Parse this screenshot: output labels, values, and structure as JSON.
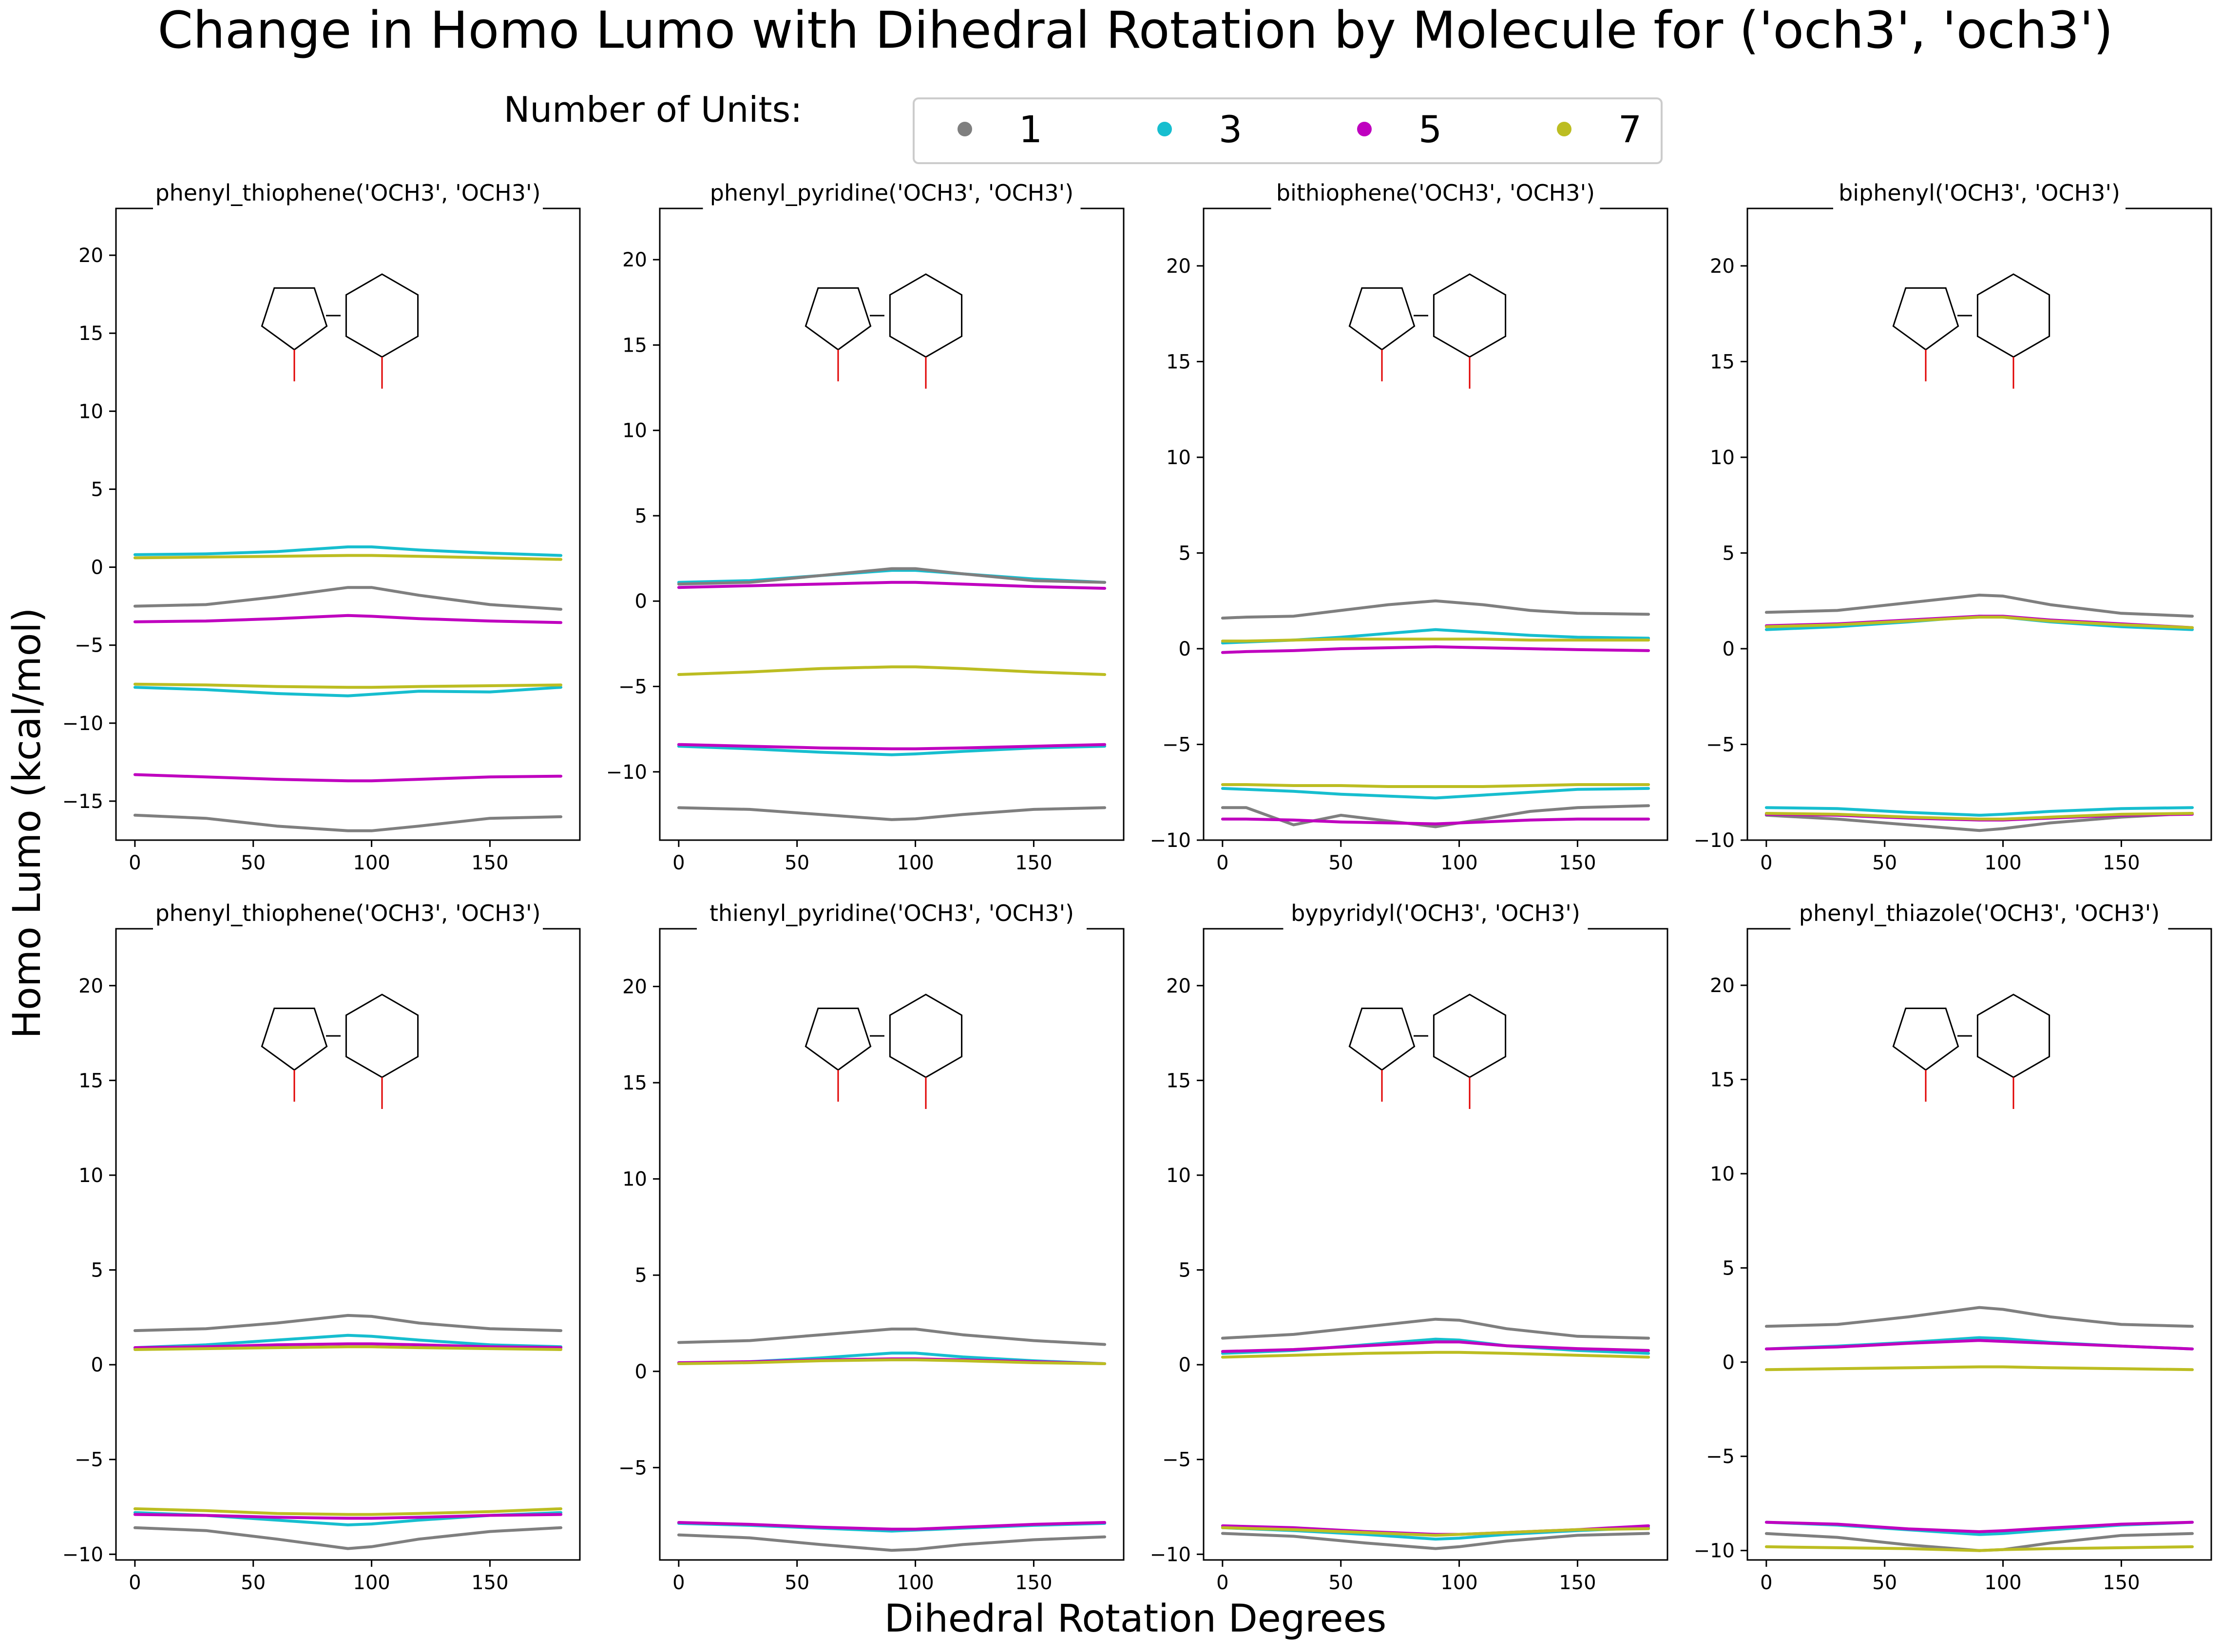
{
  "figure": {
    "title": "Change in Homo Lumo with Dihedral Rotation by Molecule for ('och3', 'och3')",
    "ylabel": "Homo Lumo (kcal/mol)",
    "xlabel": "Dihedral Rotation Degrees",
    "legend_title": "Number of Units:",
    "legend_entries": [
      "1",
      "3",
      "5",
      "7"
    ]
  },
  "colors": {
    "1": "#7f7f7f",
    "3": "#17becf",
    "5": "#bf00bf",
    "7": "#bcbd22"
  },
  "chart_data": [
    {
      "type": "line",
      "title": "phenyl_thiophene('OCH3', 'OCH3')",
      "xlim": [
        -8,
        188
      ],
      "ylim": [
        -17.5,
        23
      ],
      "xticks": [
        0,
        50,
        100,
        150
      ],
      "yticks": [
        -15,
        -10,
        -5,
        0,
        5,
        10,
        15,
        20
      ],
      "x": [
        0,
        30,
        60,
        90,
        100,
        120,
        150,
        180
      ],
      "series": [
        {
          "name": "1",
          "values": [
            -2.5,
            -2.4,
            -1.9,
            -1.3,
            -1.3,
            -1.8,
            -2.4,
            -2.7
          ]
        },
        {
          "name": "3",
          "values": [
            0.8,
            0.85,
            1.0,
            1.3,
            1.3,
            1.1,
            0.9,
            0.75
          ]
        },
        {
          "name": "5",
          "values": [
            -3.5,
            -3.45,
            -3.3,
            -3.1,
            -3.15,
            -3.3,
            -3.45,
            -3.55
          ]
        },
        {
          "name": "7",
          "values": [
            0.6,
            0.65,
            0.7,
            0.75,
            0.75,
            0.7,
            0.6,
            0.5
          ]
        },
        {
          "name": "1",
          "values": [
            -15.9,
            -16.1,
            -16.6,
            -16.9,
            -16.9,
            -16.6,
            -16.1,
            -16.0
          ]
        },
        {
          "name": "3",
          "values": [
            -7.7,
            -7.85,
            -8.1,
            -8.25,
            -8.15,
            -7.95,
            -8.0,
            -7.7
          ]
        },
        {
          "name": "5",
          "values": [
            -13.3,
            -13.45,
            -13.6,
            -13.7,
            -13.7,
            -13.6,
            -13.45,
            -13.4
          ]
        },
        {
          "name": "7",
          "values": [
            -7.5,
            -7.55,
            -7.65,
            -7.7,
            -7.7,
            -7.65,
            -7.6,
            -7.55
          ]
        }
      ]
    },
    {
      "type": "line",
      "title": "phenyl_pyridine('OCH3', 'OCH3')",
      "xlim": [
        -8,
        188
      ],
      "ylim": [
        -14,
        23
      ],
      "xticks": [
        0,
        50,
        100,
        150
      ],
      "yticks": [
        -10,
        -5,
        0,
        5,
        10,
        15,
        20
      ],
      "x": [
        0,
        30,
        60,
        90,
        100,
        120,
        150,
        180
      ],
      "series": [
        {
          "name": "1",
          "values": [
            -12.1,
            -12.2,
            -12.5,
            -12.8,
            -12.75,
            -12.5,
            -12.2,
            -12.1
          ]
        },
        {
          "name": "3",
          "values": [
            1.1,
            1.2,
            1.5,
            1.8,
            1.8,
            1.6,
            1.3,
            1.1
          ]
        },
        {
          "name": "5",
          "values": [
            0.8,
            0.9,
            1.0,
            1.1,
            1.1,
            1.0,
            0.85,
            0.75
          ]
        },
        {
          "name": "7",
          "values": [
            -4.3,
            -4.15,
            -3.95,
            -3.85,
            -3.85,
            -3.95,
            -4.15,
            -4.3
          ]
        },
        {
          "name": "3",
          "values": [
            -8.5,
            -8.65,
            -8.85,
            -9.0,
            -8.95,
            -8.8,
            -8.6,
            -8.5
          ]
        },
        {
          "name": "5",
          "values": [
            -8.4,
            -8.5,
            -8.6,
            -8.65,
            -8.65,
            -8.6,
            -8.5,
            -8.4
          ]
        },
        {
          "name": "1",
          "values": [
            1.0,
            1.1,
            1.5,
            1.9,
            1.9,
            1.6,
            1.2,
            1.1
          ]
        }
      ]
    },
    {
      "type": "line",
      "title": "bithiophene('OCH3', 'OCH3')",
      "xlim": [
        -8,
        188
      ],
      "ylim": [
        -10,
        23
      ],
      "xticks": [
        0,
        50,
        100,
        150
      ],
      "yticks": [
        -10,
        -5,
        0,
        5,
        10,
        15,
        20
      ],
      "x": [
        0,
        10,
        30,
        50,
        70,
        90,
        110,
        130,
        150,
        180
      ],
      "series": [
        {
          "name": "1",
          "values": [
            1.6,
            1.65,
            1.7,
            2.0,
            2.3,
            2.5,
            2.3,
            2.0,
            1.85,
            1.8
          ]
        },
        {
          "name": "3",
          "values": [
            0.3,
            0.35,
            0.45,
            0.6,
            0.8,
            1.0,
            0.85,
            0.7,
            0.6,
            0.55
          ]
        },
        {
          "name": "5",
          "values": [
            -0.2,
            -0.15,
            -0.1,
            0.0,
            0.05,
            0.1,
            0.05,
            0.0,
            -0.05,
            -0.1
          ]
        },
        {
          "name": "7",
          "values": [
            0.4,
            0.4,
            0.45,
            0.5,
            0.5,
            0.5,
            0.5,
            0.45,
            0.45,
            0.45
          ]
        },
        {
          "name": "1",
          "values": [
            -8.3,
            -8.3,
            -9.2,
            -8.7,
            -9.0,
            -9.3,
            -8.9,
            -8.5,
            -8.3,
            -8.2
          ]
        },
        {
          "name": "3",
          "values": [
            -7.3,
            -7.35,
            -7.45,
            -7.6,
            -7.7,
            -7.8,
            -7.65,
            -7.5,
            -7.35,
            -7.3
          ]
        },
        {
          "name": "5",
          "values": [
            -8.9,
            -8.9,
            -8.95,
            -9.05,
            -9.1,
            -9.15,
            -9.05,
            -8.95,
            -8.9,
            -8.9
          ]
        },
        {
          "name": "7",
          "values": [
            -7.1,
            -7.1,
            -7.15,
            -7.15,
            -7.2,
            -7.2,
            -7.2,
            -7.15,
            -7.1,
            -7.1
          ]
        }
      ]
    },
    {
      "type": "line",
      "title": "biphenyl('OCH3', 'OCH3')",
      "xlim": [
        -8,
        188
      ],
      "ylim": [
        -10,
        23
      ],
      "xticks": [
        0,
        50,
        100,
        150
      ],
      "yticks": [
        -10,
        -5,
        0,
        5,
        10,
        15,
        20
      ],
      "x": [
        0,
        30,
        60,
        90,
        100,
        120,
        150,
        180
      ],
      "series": [
        {
          "name": "1",
          "values": [
            1.9,
            2.0,
            2.4,
            2.8,
            2.75,
            2.3,
            1.85,
            1.7
          ]
        },
        {
          "name": "3",
          "values": [
            1.0,
            1.15,
            1.4,
            1.7,
            1.65,
            1.4,
            1.15,
            1.0
          ]
        },
        {
          "name": "5",
          "values": [
            1.2,
            1.3,
            1.5,
            1.7,
            1.7,
            1.5,
            1.3,
            1.1
          ]
        },
        {
          "name": "7",
          "values": [
            1.15,
            1.25,
            1.45,
            1.65,
            1.65,
            1.45,
            1.25,
            1.1
          ]
        },
        {
          "name": "1",
          "values": [
            -8.7,
            -8.9,
            -9.2,
            -9.5,
            -9.4,
            -9.1,
            -8.8,
            -8.6
          ]
        },
        {
          "name": "3",
          "values": [
            -8.3,
            -8.35,
            -8.55,
            -8.7,
            -8.65,
            -8.5,
            -8.35,
            -8.3
          ]
        },
        {
          "name": "5",
          "values": [
            -8.65,
            -8.7,
            -8.85,
            -8.95,
            -8.95,
            -8.85,
            -8.7,
            -8.65
          ]
        },
        {
          "name": "7",
          "values": [
            -8.6,
            -8.65,
            -8.8,
            -8.9,
            -8.9,
            -8.8,
            -8.65,
            -8.6
          ]
        }
      ]
    },
    {
      "type": "line",
      "title": "phenyl_thiophene('OCH3', 'OCH3')",
      "xlim": [
        -8,
        188
      ],
      "ylim": [
        -10.3,
        23
      ],
      "xticks": [
        0,
        50,
        100,
        150
      ],
      "yticks": [
        -10,
        -5,
        0,
        5,
        10,
        15,
        20
      ],
      "x": [
        0,
        30,
        60,
        90,
        100,
        120,
        150,
        180
      ],
      "series": [
        {
          "name": "1",
          "values": [
            1.8,
            1.9,
            2.2,
            2.6,
            2.55,
            2.2,
            1.9,
            1.8
          ]
        },
        {
          "name": "3",
          "values": [
            0.9,
            1.05,
            1.3,
            1.55,
            1.5,
            1.3,
            1.05,
            0.95
          ]
        },
        {
          "name": "5",
          "values": [
            0.9,
            0.95,
            1.05,
            1.1,
            1.1,
            1.05,
            0.95,
            0.9
          ]
        },
        {
          "name": "7",
          "values": [
            0.8,
            0.85,
            0.9,
            0.95,
            0.95,
            0.9,
            0.85,
            0.8
          ]
        },
        {
          "name": "1",
          "values": [
            -8.6,
            -8.75,
            -9.2,
            -9.7,
            -9.6,
            -9.2,
            -8.8,
            -8.6
          ]
        },
        {
          "name": "3",
          "values": [
            -7.8,
            -7.95,
            -8.2,
            -8.45,
            -8.4,
            -8.2,
            -7.95,
            -7.8
          ]
        },
        {
          "name": "5",
          "values": [
            -7.9,
            -7.95,
            -8.05,
            -8.1,
            -8.1,
            -8.05,
            -7.95,
            -7.9
          ]
        },
        {
          "name": "7",
          "values": [
            -7.6,
            -7.7,
            -7.85,
            -7.9,
            -7.9,
            -7.85,
            -7.75,
            -7.6
          ]
        }
      ]
    },
    {
      "type": "line",
      "title": "thienyl_pyridine('OCH3', 'OCH3')",
      "xlim": [
        -8,
        188
      ],
      "ylim": [
        -9.8,
        23
      ],
      "xticks": [
        0,
        50,
        100,
        150
      ],
      "yticks": [
        -5,
        0,
        5,
        10,
        15,
        20
      ],
      "x": [
        0,
        30,
        60,
        90,
        100,
        120,
        150,
        180
      ],
      "series": [
        {
          "name": "1",
          "values": [
            1.5,
            1.6,
            1.9,
            2.2,
            2.2,
            1.9,
            1.6,
            1.4
          ]
        },
        {
          "name": "3",
          "values": [
            0.4,
            0.5,
            0.7,
            0.95,
            0.95,
            0.75,
            0.55,
            0.4
          ]
        },
        {
          "name": "5",
          "values": [
            0.45,
            0.5,
            0.6,
            0.65,
            0.65,
            0.6,
            0.5,
            0.4
          ]
        },
        {
          "name": "7",
          "values": [
            0.4,
            0.45,
            0.55,
            0.6,
            0.6,
            0.55,
            0.45,
            0.4
          ]
        },
        {
          "name": "1",
          "values": [
            -8.5,
            -8.65,
            -9.0,
            -9.3,
            -9.25,
            -9.0,
            -8.75,
            -8.6
          ]
        },
        {
          "name": "3",
          "values": [
            -7.9,
            -8.0,
            -8.15,
            -8.3,
            -8.25,
            -8.15,
            -8.0,
            -7.9
          ]
        },
        {
          "name": "5",
          "values": [
            -7.85,
            -7.95,
            -8.1,
            -8.2,
            -8.2,
            -8.1,
            -7.95,
            -7.85
          ]
        }
      ]
    },
    {
      "type": "line",
      "title": "bypyridyl('OCH3', 'OCH3')",
      "xlim": [
        -8,
        188
      ],
      "ylim": [
        -10.3,
        23
      ],
      "xticks": [
        0,
        50,
        100,
        150
      ],
      "yticks": [
        -10,
        -5,
        0,
        5,
        10,
        15,
        20
      ],
      "x": [
        0,
        30,
        60,
        90,
        100,
        120,
        150,
        180
      ],
      "series": [
        {
          "name": "1",
          "values": [
            1.4,
            1.6,
            2.0,
            2.4,
            2.35,
            1.9,
            1.5,
            1.4
          ]
        },
        {
          "name": "3",
          "values": [
            0.6,
            0.75,
            1.05,
            1.35,
            1.3,
            1.0,
            0.75,
            0.6
          ]
        },
        {
          "name": "5",
          "values": [
            0.7,
            0.8,
            1.0,
            1.2,
            1.2,
            1.0,
            0.85,
            0.75
          ]
        },
        {
          "name": "7",
          "values": [
            0.4,
            0.5,
            0.6,
            0.65,
            0.65,
            0.6,
            0.5,
            0.4
          ]
        },
        {
          "name": "1",
          "values": [
            -8.9,
            -9.05,
            -9.4,
            -9.7,
            -9.6,
            -9.3,
            -9.0,
            -8.9
          ]
        },
        {
          "name": "3",
          "values": [
            -8.6,
            -8.75,
            -8.95,
            -9.2,
            -9.15,
            -8.95,
            -8.75,
            -8.6
          ]
        },
        {
          "name": "5",
          "values": [
            -8.5,
            -8.6,
            -8.8,
            -8.95,
            -8.95,
            -8.85,
            -8.7,
            -8.5
          ]
        },
        {
          "name": "7",
          "values": [
            -8.6,
            -8.7,
            -8.85,
            -9.0,
            -8.95,
            -8.85,
            -8.7,
            -8.65
          ]
        }
      ]
    },
    {
      "type": "line",
      "title": "phenyl_thiazole('OCH3', 'OCH3')",
      "xlim": [
        -8,
        188
      ],
      "ylim": [
        -10.5,
        23
      ],
      "xticks": [
        0,
        50,
        100,
        150
      ],
      "yticks": [
        -10,
        -5,
        0,
        5,
        10,
        15,
        20
      ],
      "x": [
        0,
        30,
        60,
        90,
        100,
        120,
        150,
        180
      ],
      "series": [
        {
          "name": "1",
          "values": [
            1.9,
            2.0,
            2.4,
            2.9,
            2.8,
            2.4,
            2.0,
            1.9
          ]
        },
        {
          "name": "3",
          "values": [
            0.7,
            0.85,
            1.05,
            1.3,
            1.25,
            1.05,
            0.85,
            0.7
          ]
        },
        {
          "name": "5",
          "values": [
            0.7,
            0.8,
            1.0,
            1.15,
            1.1,
            1.0,
            0.85,
            0.7
          ]
        },
        {
          "name": "7",
          "values": [
            -0.4,
            -0.35,
            -0.3,
            -0.25,
            -0.25,
            -0.3,
            -0.35,
            -0.4
          ]
        },
        {
          "name": "1",
          "values": [
            -9.1,
            -9.3,
            -9.7,
            -10.0,
            -9.95,
            -9.6,
            -9.2,
            -9.1
          ]
        },
        {
          "name": "3",
          "values": [
            -8.5,
            -8.65,
            -8.9,
            -9.15,
            -9.1,
            -8.9,
            -8.65,
            -8.5
          ]
        },
        {
          "name": "5",
          "values": [
            -8.5,
            -8.6,
            -8.85,
            -9.0,
            -8.95,
            -8.8,
            -8.6,
            -8.5
          ]
        },
        {
          "name": "7",
          "values": [
            -9.8,
            -9.85,
            -9.9,
            -10.0,
            -9.95,
            -9.9,
            -9.85,
            -9.8
          ]
        }
      ]
    }
  ]
}
